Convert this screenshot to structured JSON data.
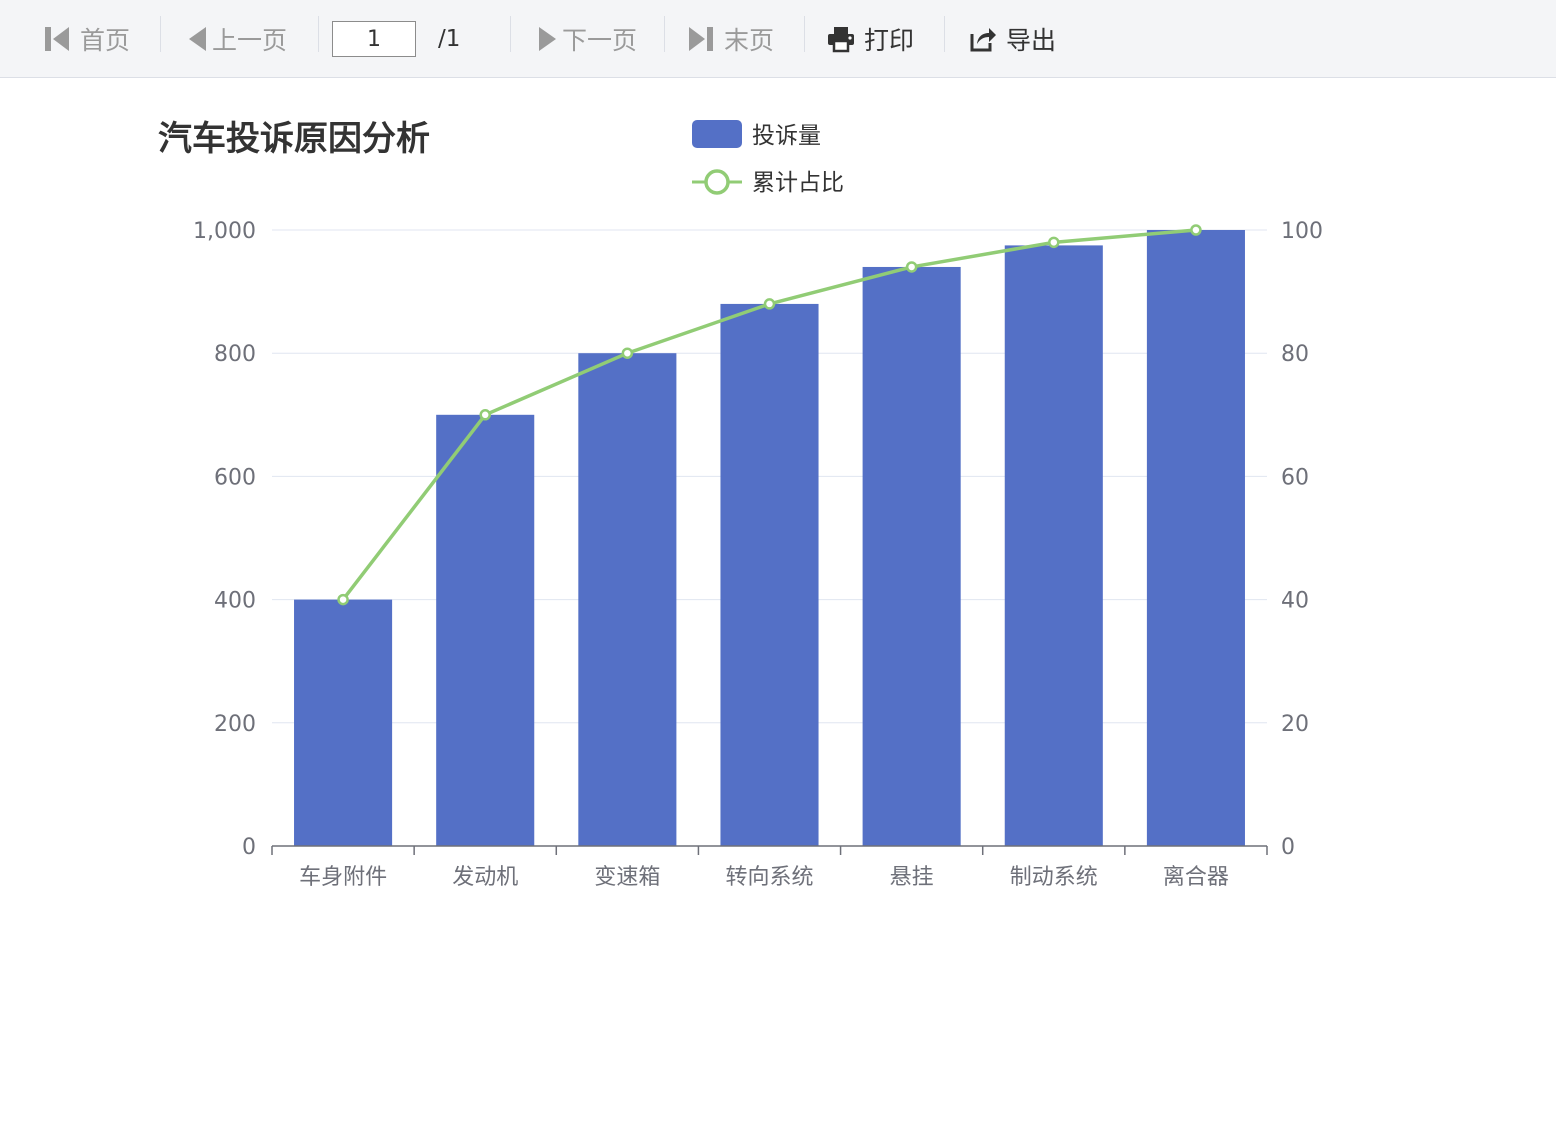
{
  "toolbar": {
    "first_label": "首页",
    "prev_label": "上一页",
    "page_value": "1",
    "page_total": "/1",
    "next_label": "下一页",
    "last_label": "末页",
    "print_label": "打印",
    "export_label": "导出"
  },
  "chart_data": {
    "type": "bar",
    "title": "汽车投诉原因分析",
    "categories": [
      "车身附件",
      "发动机",
      "变速箱",
      "转向系统",
      "悬挂",
      "制动系统",
      "离合器"
    ],
    "series": [
      {
        "name": "投诉量",
        "type": "bar",
        "axis": "left",
        "color": "#5470c6",
        "values": [
          400,
          700,
          800,
          880,
          940,
          975,
          1000
        ]
      },
      {
        "name": "累计占比",
        "type": "line",
        "axis": "right",
        "color": "#91cc75",
        "values": [
          40,
          70,
          80,
          88,
          94,
          98,
          100
        ]
      }
    ],
    "y_left": {
      "min": 0,
      "max": 1000,
      "ticks": [
        0,
        200,
        400,
        600,
        800,
        1000
      ],
      "tick_labels": [
        "0",
        "200",
        "400",
        "600",
        "800",
        "1,000"
      ]
    },
    "y_right": {
      "min": 0,
      "max": 100,
      "ticks": [
        0,
        20,
        40,
        60,
        80,
        100
      ],
      "tick_labels": [
        "0",
        "20",
        "40",
        "60",
        "80",
        "100"
      ]
    },
    "grid": true,
    "legend_position": "top"
  }
}
